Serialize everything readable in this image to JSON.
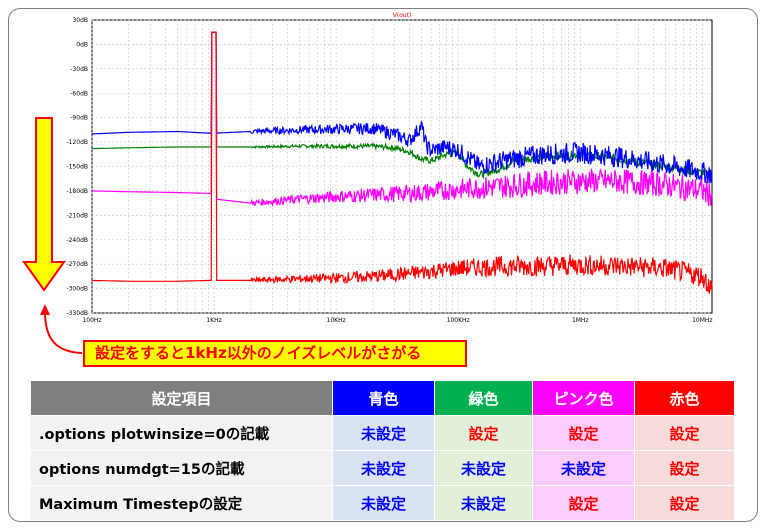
{
  "chart_data": {
    "type": "line",
    "title": "V(out)",
    "x_scale": "log",
    "xlim": [
      100,
      12000000
    ],
    "ylim": [
      -330,
      30
    ],
    "x_ticks": [
      {
        "value": 100,
        "label": "100Hz"
      },
      {
        "value": 1000,
        "label": "1KHz"
      },
      {
        "value": 10000,
        "label": "10KHz"
      },
      {
        "value": 100000,
        "label": "100KHz"
      },
      {
        "value": 1000000,
        "label": "1MHz"
      },
      {
        "value": 10000000,
        "label": "10MHz"
      }
    ],
    "y_ticks": [
      {
        "value": 30,
        "label": "30dB"
      },
      {
        "value": 0,
        "label": "0dB"
      },
      {
        "value": -30,
        "label": "-30dB"
      },
      {
        "value": -60,
        "label": "-60dB"
      },
      {
        "value": -90,
        "label": "-90dB"
      },
      {
        "value": -120,
        "label": "-120dB"
      },
      {
        "value": -150,
        "label": "-150dB"
      },
      {
        "value": -180,
        "label": "-180dB"
      },
      {
        "value": -210,
        "label": "-210dB"
      },
      {
        "value": -240,
        "label": "-240dB"
      },
      {
        "value": -270,
        "label": "-270dB"
      },
      {
        "value": -300,
        "label": "-300dB"
      },
      {
        "value": -330,
        "label": "-330dB"
      }
    ],
    "grid": true,
    "series": [
      {
        "color": "#008000",
        "values": [
          [
            100,
            -128
          ],
          [
            200,
            -127
          ],
          [
            500,
            -126
          ],
          [
            900,
            -126
          ],
          [
            980,
            -126
          ],
          [
            1000,
            15
          ],
          [
            1020,
            -126
          ],
          [
            2000,
            -126
          ],
          [
            5000,
            -125
          ],
          [
            10000,
            -125
          ],
          [
            20000,
            -125
          ],
          [
            30000,
            -127
          ],
          [
            40000,
            -132
          ],
          [
            50000,
            -141
          ],
          [
            60000,
            -143
          ],
          [
            80000,
            -135
          ],
          [
            100000,
            -133
          ],
          [
            120000,
            -150
          ],
          [
            150000,
            -160
          ],
          [
            200000,
            -155
          ],
          [
            300000,
            -142
          ],
          [
            500000,
            -138
          ],
          [
            1000000,
            -135
          ],
          [
            2000000,
            -140
          ],
          [
            5000000,
            -150
          ],
          [
            10000000,
            -158
          ],
          [
            12000000,
            -160
          ]
        ]
      },
      {
        "color": "#0000ff",
        "values": [
          [
            100,
            -110
          ],
          [
            200,
            -108
          ],
          [
            500,
            -107
          ],
          [
            900,
            -109
          ],
          [
            980,
            -109
          ],
          [
            1000,
            15
          ],
          [
            1020,
            -109
          ],
          [
            2000,
            -107
          ],
          [
            5000,
            -105
          ],
          [
            10000,
            -104
          ],
          [
            20000,
            -103
          ],
          [
            30000,
            -110
          ],
          [
            40000,
            -118
          ],
          [
            50000,
            -100
          ],
          [
            55000,
            -125
          ],
          [
            60000,
            -130
          ],
          [
            80000,
            -126
          ],
          [
            100000,
            -130
          ],
          [
            150000,
            -150
          ],
          [
            200000,
            -145
          ],
          [
            300000,
            -140
          ],
          [
            500000,
            -135
          ],
          [
            1000000,
            -133
          ],
          [
            2000000,
            -138
          ],
          [
            5000000,
            -148
          ],
          [
            10000000,
            -157
          ],
          [
            12000000,
            -160
          ]
        ]
      },
      {
        "color": "#ff00ff",
        "values": [
          [
            100,
            -180
          ],
          [
            200,
            -181
          ],
          [
            500,
            -182
          ],
          [
            900,
            -183
          ],
          [
            980,
            -183
          ],
          [
            1000,
            15
          ],
          [
            1020,
            -190
          ],
          [
            2000,
            -195
          ],
          [
            5000,
            -190
          ],
          [
            10000,
            -187
          ],
          [
            20000,
            -185
          ],
          [
            50000,
            -182
          ],
          [
            100000,
            -178
          ],
          [
            200000,
            -175
          ],
          [
            500000,
            -170
          ],
          [
            1000000,
            -168
          ],
          [
            2000000,
            -168
          ],
          [
            5000000,
            -172
          ],
          [
            10000000,
            -180
          ],
          [
            12000000,
            -185
          ]
        ]
      },
      {
        "color": "#ff0000",
        "values": [
          [
            100,
            -290
          ],
          [
            200,
            -291
          ],
          [
            500,
            -291
          ],
          [
            900,
            -290
          ],
          [
            980,
            -290
          ],
          [
            1000,
            15
          ],
          [
            1020,
            -290
          ],
          [
            2000,
            -290
          ],
          [
            5000,
            -288
          ],
          [
            10000,
            -287
          ],
          [
            20000,
            -285
          ],
          [
            50000,
            -280
          ],
          [
            100000,
            -275
          ],
          [
            200000,
            -273
          ],
          [
            500000,
            -272
          ],
          [
            1000000,
            -271
          ],
          [
            2000000,
            -272
          ],
          [
            5000000,
            -275
          ],
          [
            10000000,
            -285
          ],
          [
            12000000,
            -300
          ]
        ]
      }
    ]
  },
  "callout": {
    "text": "設定をすると1kHz以外のノイズレベルがさがる"
  },
  "table": {
    "header": [
      "設定項目",
      "青色",
      "緑色",
      "ピンク色",
      "赤色"
    ],
    "rows": [
      {
        "label": ".options plotwinsize=0の記載",
        "cells": [
          "未設定",
          "設定",
          "設定",
          "設定"
        ]
      },
      {
        "label": "options numdgt=15の記載",
        "cells": [
          "未設定",
          "未設定",
          "未設定",
          "設定"
        ]
      },
      {
        "label": "Maximum Timestepの設定",
        "cells": [
          "未設定",
          "未設定",
          "設定",
          "設定"
        ]
      }
    ]
  },
  "colors": {
    "blue": "#0000ff",
    "green": "#00b050",
    "pink": "#ff00ff",
    "red": "#ff0000",
    "arrow_fill": "#ffff00",
    "arrow_border": "#ff0000"
  }
}
